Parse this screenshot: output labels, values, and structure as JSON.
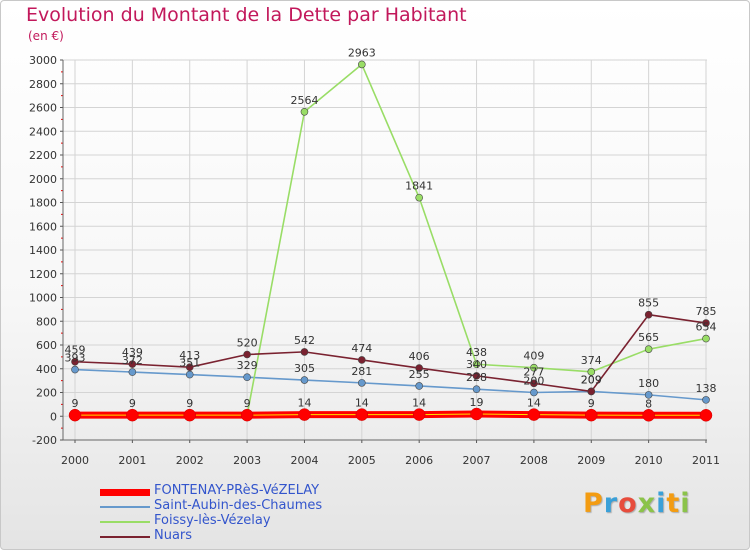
{
  "title": "Evolution du Montant de la Dette par Habitant",
  "subtitle": "(en €)",
  "logo": "Proxiti",
  "colors": {
    "title": "#c2185b",
    "legend_text": "#3355cc",
    "logo_letters": [
      "#f39c12",
      "#3aa0d8",
      "#e74c3c",
      "#8bc34a",
      "#3aa0d8",
      "#f39c12",
      "#8bc34a"
    ]
  },
  "chart_data": {
    "type": "line",
    "title": "Evolution du Montant de la Dette par Habitant",
    "ylabel": "(en €)",
    "xlabel": "",
    "x": [
      "2000",
      "2001",
      "2002",
      "2003",
      "2004",
      "2005",
      "2006",
      "2007",
      "2008",
      "2009",
      "2010",
      "2011"
    ],
    "ylim": [
      -200,
      3000
    ],
    "yticks": [
      -200,
      0,
      200,
      400,
      600,
      800,
      1000,
      1200,
      1400,
      1600,
      1800,
      2000,
      2200,
      2400,
      2600,
      2800,
      3000
    ],
    "grid": true,
    "legend_position": "bottom-left",
    "series": [
      {
        "name": "FONTENAY-PRèS-VéZELAY",
        "color": "#ff0000",
        "values": [
          9,
          9,
          9,
          9,
          14,
          14,
          14,
          19,
          14,
          9,
          8,
          8
        ],
        "labels": [
          "9",
          "9",
          "9",
          "9",
          "14",
          "14",
          "14",
          "19",
          "14",
          "9",
          "8",
          ""
        ]
      },
      {
        "name": "Saint-Aubin-des-Chaumes",
        "color": "#6699cc",
        "values": [
          393,
          372,
          351,
          329,
          305,
          281,
          255,
          228,
          200,
          209,
          180,
          138
        ],
        "labels": [
          "393",
          "372",
          "351",
          "329",
          "305",
          "281",
          "255",
          "228",
          "200",
          "209",
          "180",
          "138"
        ]
      },
      {
        "name": "Foissy-lès-Vézelay",
        "color": "#99dd66",
        "values": [
          9,
          9,
          9,
          9,
          2564,
          2963,
          1841,
          438,
          409,
          374,
          565,
          654
        ],
        "labels": [
          "",
          "",
          "",
          "",
          "2564",
          "2963",
          "1841",
          "438",
          "409",
          "374",
          "565",
          "654"
        ]
      },
      {
        "name": "Nuars",
        "color": "#7a2230",
        "values": [
          459,
          439,
          413,
          520,
          542,
          474,
          406,
          340,
          277,
          209,
          855,
          785
        ],
        "labels": [
          "459",
          "439",
          "413",
          "520",
          "542",
          "474",
          "406",
          "340",
          "277",
          "209",
          "855",
          "785"
        ]
      }
    ]
  }
}
